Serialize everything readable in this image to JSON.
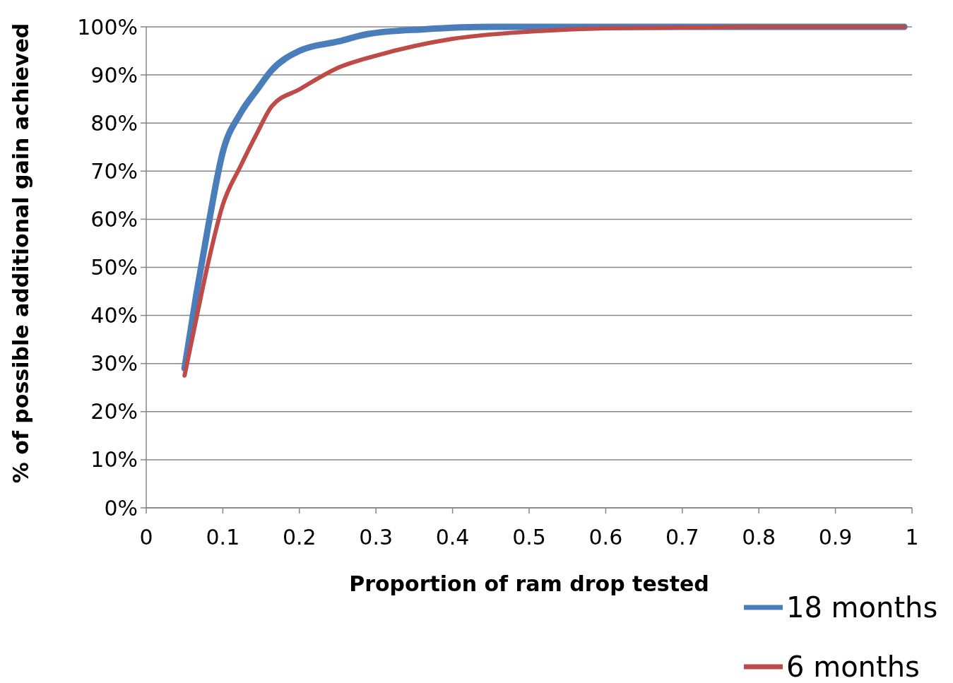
{
  "chart_data": {
    "type": "line",
    "xlabel": "Proportion of ram drop tested",
    "ylabel": "% of possible additional gain achieved",
    "xlim": [
      0,
      1
    ],
    "xticks": [
      0,
      0.1,
      0.2,
      0.3,
      0.4,
      0.5,
      0.6,
      0.7,
      0.8,
      0.9,
      1
    ],
    "ylim": [
      0,
      100
    ],
    "yticks": [
      {
        "value": 0,
        "label": "0%"
      },
      {
        "value": 10,
        "label": "10%"
      },
      {
        "value": 20,
        "label": "20%"
      },
      {
        "value": 30,
        "label": "30%"
      },
      {
        "value": 40,
        "label": "40%"
      },
      {
        "value": 50,
        "label": "50%"
      },
      {
        "value": 60,
        "label": "60%"
      },
      {
        "value": 70,
        "label": "70%"
      },
      {
        "value": 80,
        "label": "80%"
      },
      {
        "value": 90,
        "label": "90%"
      },
      {
        "value": 100,
        "label": "100%"
      }
    ],
    "grid": "y",
    "legend": "bottom right",
    "marker": "none",
    "line_style": "solid",
    "series": [
      {
        "name": "18 months",
        "color": "#4a7ebb",
        "x": [
          0.05,
          0.065,
          0.081,
          0.1,
          0.123,
          0.145,
          0.164,
          0.2,
          0.252,
          0.289,
          0.363,
          0.45,
          0.6,
          0.8,
          0.99
        ],
        "values": [
          29,
          44,
          58.6,
          74,
          82,
          87,
          91,
          95,
          97,
          98.5,
          99.5,
          100,
          100,
          100,
          100
        ]
      },
      {
        "name": "6 months",
        "color": "#be4b48",
        "x": [
          0.05,
          0.065,
          0.081,
          0.1,
          0.123,
          0.145,
          0.164,
          0.2,
          0.252,
          0.3,
          0.4,
          0.5,
          0.6,
          0.8,
          0.99
        ],
        "values": [
          27.5,
          39,
          51,
          63,
          71,
          78,
          83.5,
          87,
          91.6,
          94,
          97.5,
          99,
          99.7,
          100,
          100
        ]
      }
    ]
  }
}
